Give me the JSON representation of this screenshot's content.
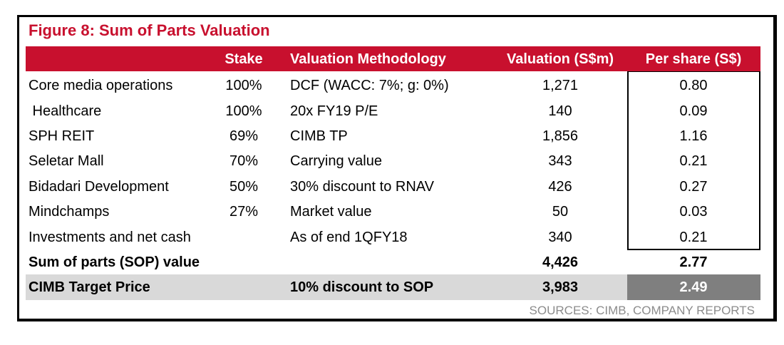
{
  "figure_title": "Figure 8: Sum of Parts Valuation",
  "columns": {
    "stake": "Stake",
    "methodology": "Valuation Methodology",
    "valuation": "Valuation (S$m)",
    "per_share": "Per share (S$)"
  },
  "rows": [
    {
      "name": "Core media operations",
      "stake": "100%",
      "method": "DCF (WACC: 7%; g: 0%)",
      "valuation": "1,271",
      "per_share": "0.80"
    },
    {
      "name": " Healthcare",
      "stake": "100%",
      "method": "20x FY19 P/E",
      "valuation": "140",
      "per_share": "0.09"
    },
    {
      "name": "SPH REIT",
      "stake": "69%",
      "method": "CIMB TP",
      "valuation": "1,856",
      "per_share": "1.16"
    },
    {
      "name": "Seletar Mall",
      "stake": "70%",
      "method": "Carrying value",
      "valuation": "343",
      "per_share": "0.21"
    },
    {
      "name": "Bidadari Development",
      "stake": "50%",
      "method": "30% discount to RNAV",
      "valuation": "426",
      "per_share": "0.27"
    },
    {
      "name": "Mindchamps",
      "stake": "27%",
      "method": "Market value",
      "valuation": "50",
      "per_share": "0.03"
    },
    {
      "name": "Investments and net cash",
      "stake": "",
      "method": "As of end 1QFY18",
      "valuation": "340",
      "per_share": "0.21"
    }
  ],
  "sop_row": {
    "name": "Sum of parts (SOP) value",
    "valuation": "4,426",
    "per_share": "2.77"
  },
  "tp_row": {
    "name": "CIMB Target Price",
    "method": "10% discount to SOP",
    "valuation": "3,983",
    "per_share": "2.49"
  },
  "source": "SOURCES: CIMB, COMPANY REPORTS",
  "colors": {
    "accent_red": "#c8102e",
    "band_grey": "#d9d9d9",
    "tp_dark_grey": "#7f7f7f",
    "source_grey": "#8c8c8c"
  }
}
